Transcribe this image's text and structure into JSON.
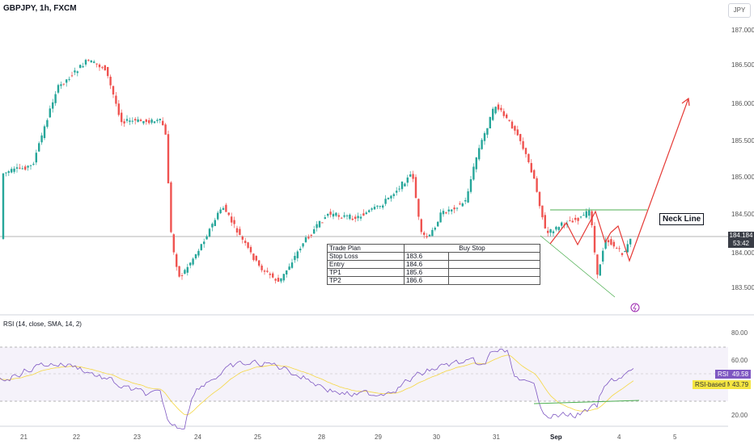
{
  "header": {
    "symbol": "GBPJPY, 1h, FXCM",
    "currency": "JPY"
  },
  "price_axis": [
    "187.000",
    "186.500",
    "186.000",
    "185.500",
    "185.000",
    "184.500",
    "184.000",
    "183.500"
  ],
  "last_price": {
    "price": "184.184",
    "countdown": "53:42"
  },
  "annotation": {
    "neck_line": "Neck Line"
  },
  "trade_plan": {
    "header": [
      "Trade Plan",
      "Buy Stop"
    ],
    "rows": [
      {
        "label": "Stop Loss",
        "value": "183.6"
      },
      {
        "label": "Entry",
        "value": "184.6"
      },
      {
        "label": "TP1",
        "value": "185.6"
      },
      {
        "label": "TP2",
        "value": "186.6"
      }
    ]
  },
  "rsi": {
    "label": "RSI (14, close, SMA, 14, 2)",
    "axis": [
      "80.00",
      "60.00",
      "20.00"
    ],
    "rsi_tag": "RSI",
    "rsi_value": "49.58",
    "ma_label": "RSI-based MA",
    "ma_value": "43.79"
  },
  "time_axis": [
    {
      "label": "21",
      "bold": false
    },
    {
      "label": "22",
      "bold": false
    },
    {
      "label": "23",
      "bold": false
    },
    {
      "label": "24",
      "bold": false
    },
    {
      "label": "25",
      "bold": false
    },
    {
      "label": "28",
      "bold": false
    },
    {
      "label": "29",
      "bold": false
    },
    {
      "label": "30",
      "bold": false
    },
    {
      "label": "31",
      "bold": false
    },
    {
      "label": "Sep",
      "bold": true
    },
    {
      "label": "4",
      "bold": false
    },
    {
      "label": "5",
      "bold": false
    }
  ],
  "colors": {
    "up": "#26a69a",
    "down": "#ef5350",
    "rsi_line": "#7e57c2",
    "rsi_ma": "#f5d742",
    "arrow": "#e53935",
    "neck": "#4caf50"
  }
}
